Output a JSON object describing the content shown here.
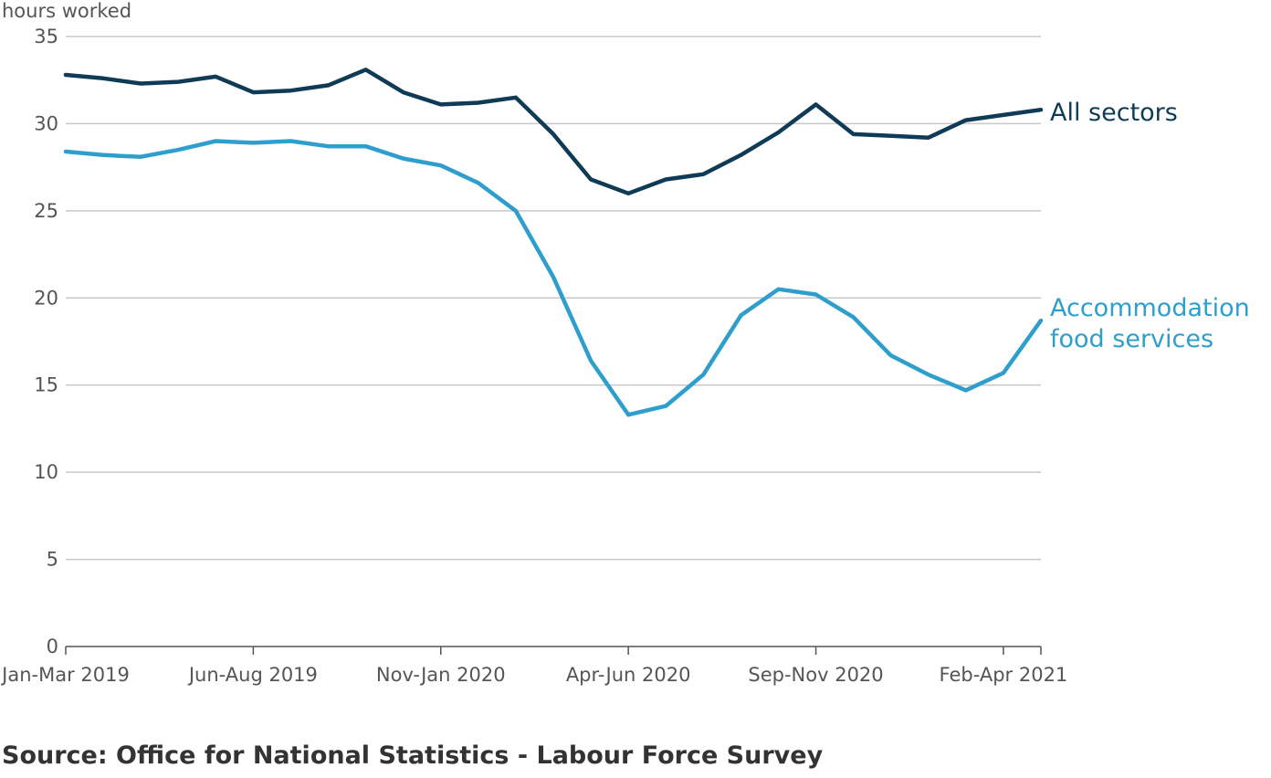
{
  "chart_data": {
    "type": "line",
    "ylabel": "hours worked",
    "ylim": [
      0,
      35
    ],
    "yticks": [
      0,
      5,
      10,
      15,
      20,
      25,
      30,
      35
    ],
    "x": [
      "Jan-Mar 2019",
      "Feb-Apr 2019",
      "Mar-May 2019",
      "Apr-Jun 2019",
      "May-Jul 2019",
      "Jun-Aug 2019",
      "Jul-Sep 2019",
      "Aug-Oct 2019",
      "Sep-Nov 2019",
      "Oct-Dec 2019",
      "Nov-Jan 2020",
      "Dec-Feb 2020",
      "Jan-Mar 2020",
      "Feb-Apr 2020",
      "Mar-May 2020",
      "Apr-Jun 2020",
      "May-Jul 2020",
      "Jun-Aug 2020",
      "Jul-Sep 2020",
      "Aug-Oct 2020",
      "Sep-Nov 2020",
      "Oct-Dec 2020",
      "Nov-Jan 2021",
      "Dec-Feb 2021",
      "Jan-Mar 2021",
      "Feb-Apr 2021",
      "Mar-May 2021"
    ],
    "xtick_labels": [
      "Jan-Mar 2019",
      "Jun-Aug 2019",
      "Nov-Jan 2020",
      "Apr-Jun 2020",
      "Sep-Nov 2020",
      "Feb-Apr 2021"
    ],
    "xtick_indices": [
      0,
      5,
      10,
      15,
      20,
      25
    ],
    "grid": true,
    "series": [
      {
        "name": "All sectors",
        "color": "#0f3b57",
        "values": [
          32.8,
          32.6,
          32.3,
          32.4,
          32.7,
          31.8,
          31.9,
          32.2,
          33.1,
          31.8,
          31.1,
          31.2,
          31.5,
          29.4,
          26.8,
          26.0,
          26.8,
          27.1,
          28.2,
          29.5,
          31.1,
          29.4,
          29.3,
          29.2,
          30.2,
          30.5,
          30.8
        ]
      },
      {
        "name": "Accommodation food services",
        "label_lines": [
          "Accommodation",
          "food services"
        ],
        "color": "#2e9fcc",
        "values": [
          28.4,
          28.2,
          28.1,
          28.5,
          29.0,
          28.9,
          29.0,
          28.7,
          28.7,
          28.0,
          27.6,
          26.6,
          25.0,
          21.2,
          16.4,
          13.3,
          13.8,
          15.6,
          19.0,
          20.5,
          20.2,
          18.9,
          16.7,
          15.6,
          14.7,
          15.7,
          18.7
        ]
      }
    ]
  },
  "source": "Source: Office for National Statistics - Labour Force Survey"
}
